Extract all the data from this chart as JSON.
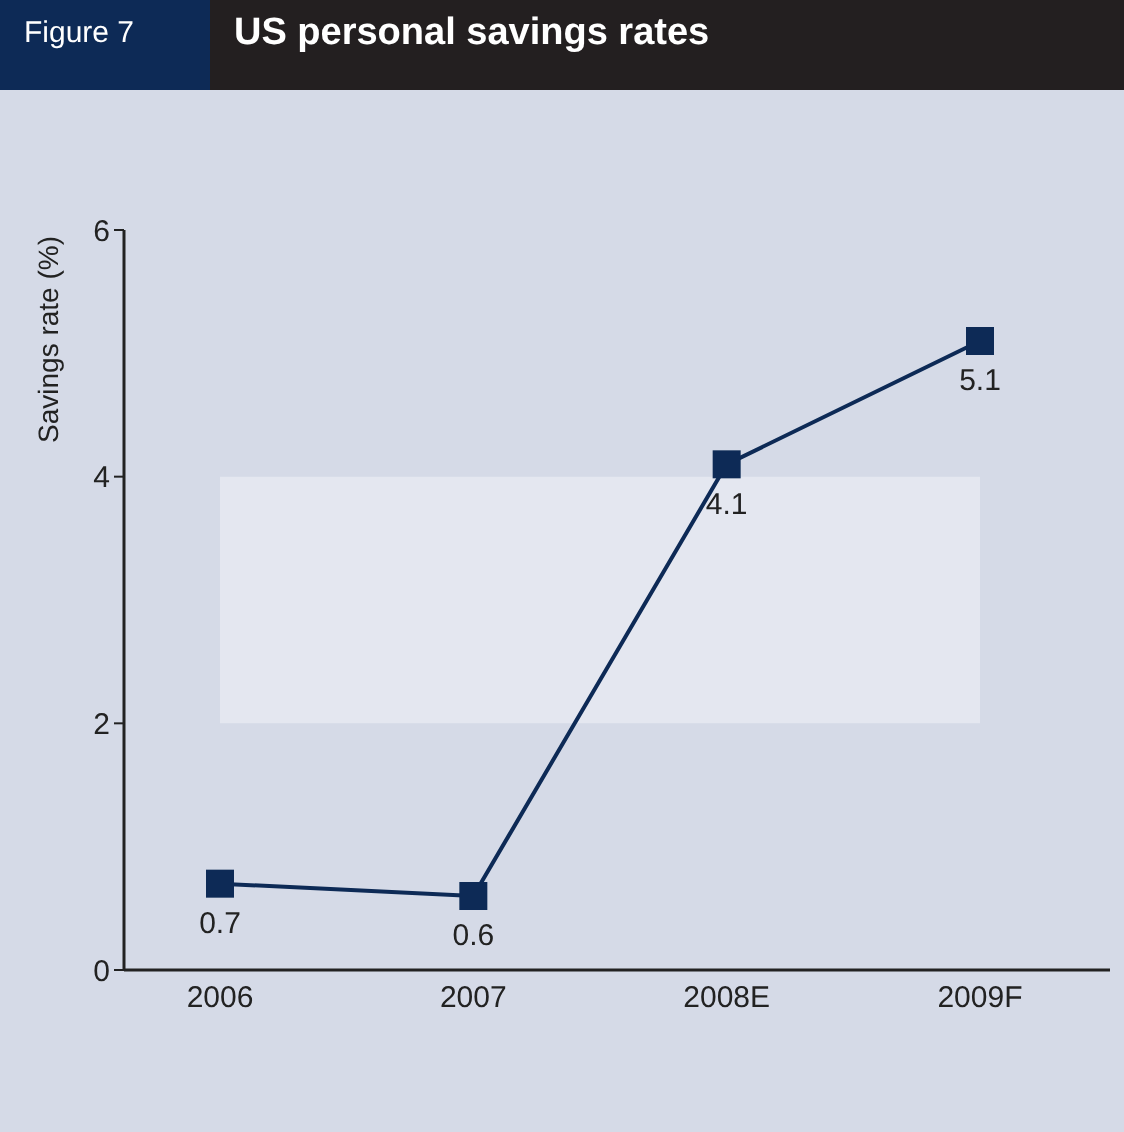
{
  "chart_data": {
    "type": "line",
    "title": "US personal savings rates",
    "annotations": [
      "Figure 7"
    ],
    "ylabel": "Savings rate (%)",
    "categories": [
      "2006",
      "2007",
      "2008E",
      "2009F"
    ],
    "series": [
      {
        "color": "#0d2a56",
        "values": [
          0.7,
          0.6,
          4.1,
          5.1
        ]
      }
    ],
    "ylim": [
      0,
      6
    ],
    "yticks": [
      0,
      2,
      4,
      6
    ],
    "marker": "square",
    "data_labels": true,
    "grid": false,
    "bands": [
      {
        "axis": "y",
        "from": 2,
        "to": 4,
        "color": "#e4e7f0"
      }
    ]
  }
}
